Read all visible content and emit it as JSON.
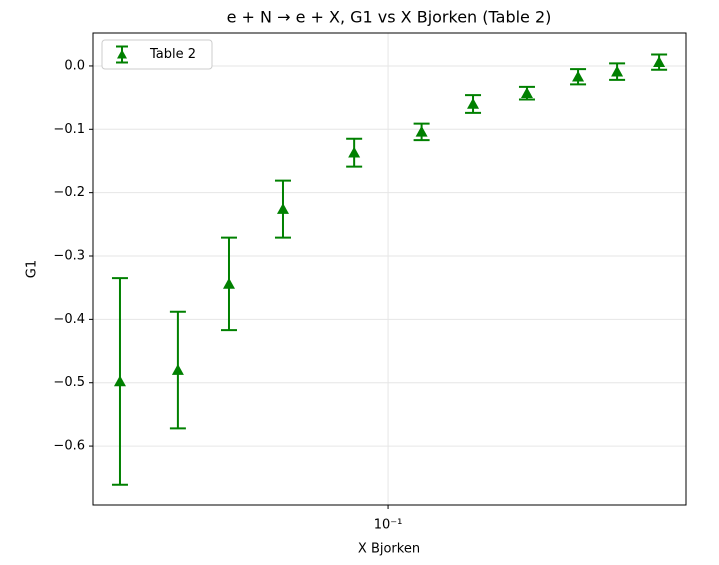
{
  "chart_data": {
    "type": "errorbar",
    "title": "e + N → e + X, G1 vs X Bjorken (Table 2)",
    "x_label": "X Bjorken",
    "y_label": "G1",
    "x_scale": "log",
    "grid": true,
    "legend": "upper left",
    "xlim": [
      0.01404,
      0.726
    ],
    "ylim": [
      -0.693,
      0.052
    ],
    "xticks": [
      {
        "value": 0.1,
        "label": "10⁻¹"
      }
    ],
    "yticks": [
      {
        "value": 0,
        "label": "0.0"
      },
      {
        "value": -0.1,
        "label": "−0.1"
      },
      {
        "value": -0.2,
        "label": "−0.2"
      },
      {
        "value": -0.3,
        "label": "−0.3"
      },
      {
        "value": -0.4,
        "label": "−0.4"
      },
      {
        "value": -0.5,
        "label": "−0.5"
      },
      {
        "value": -0.6,
        "label": "−0.6"
      }
    ],
    "series": [
      {
        "name": "Table 2",
        "color": "#008000",
        "x": [
          0.0168,
          0.0247,
          0.0347,
          0.0497,
          0.0798,
          0.125,
          0.176,
          0.252,
          0.354,
          0.459,
          0.607
        ],
        "values": [
          -0.498,
          -0.48,
          -0.344,
          -0.226,
          -0.137,
          -0.104,
          -0.06,
          -0.043,
          -0.017,
          -0.009,
          0.006
        ],
        "errors": [
          0.163,
          0.092,
          0.073,
          0.045,
          0.022,
          0.013,
          0.014,
          0.01,
          0.012,
          0.013,
          0.012
        ]
      }
    ]
  }
}
